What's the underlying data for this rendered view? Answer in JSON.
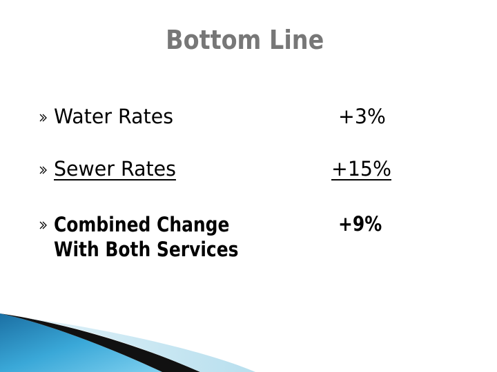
{
  "slide": {
    "title": "Bottom Line",
    "rows": [
      {
        "label": "Water Rates",
        "value": "+3%"
      },
      {
        "label": "Sewer Rates ",
        "value": "+15%"
      },
      {
        "label_line1": "Combined Change",
        "label_line2": "With Both Services",
        "value": "+9%"
      }
    ]
  },
  "icons": {
    "bullet": "bullet-arrow-icon"
  },
  "colors": {
    "title": "#777777",
    "text": "#000000",
    "accent_blue": "#2a8fc4",
    "accent_light": "#bfe3f2"
  }
}
